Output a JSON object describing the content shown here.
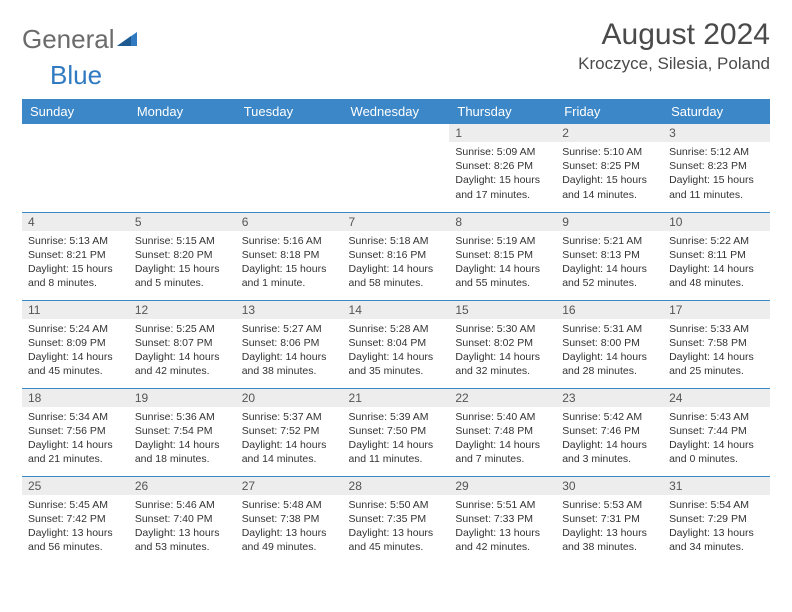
{
  "logo": {
    "text1": "General",
    "text2": "Blue"
  },
  "title": "August 2024",
  "location": "Kroczyce, Silesia, Poland",
  "colors": {
    "header_bg": "#3c87c7",
    "header_text": "#ffffff",
    "daynum_bg": "#ededed",
    "text": "#333333",
    "border": "#3c87c7",
    "title_color": "#4a4a4a",
    "logo_gray": "#6b6b6b",
    "logo_blue": "#2f7ac0"
  },
  "weekdays": [
    "Sunday",
    "Monday",
    "Tuesday",
    "Wednesday",
    "Thursday",
    "Friday",
    "Saturday"
  ],
  "weeks": [
    [
      {
        "n": "",
        "sr": "",
        "ss": "",
        "dl": ""
      },
      {
        "n": "",
        "sr": "",
        "ss": "",
        "dl": ""
      },
      {
        "n": "",
        "sr": "",
        "ss": "",
        "dl": ""
      },
      {
        "n": "",
        "sr": "",
        "ss": "",
        "dl": ""
      },
      {
        "n": "1",
        "sr": "Sunrise: 5:09 AM",
        "ss": "Sunset: 8:26 PM",
        "dl": "Daylight: 15 hours and 17 minutes."
      },
      {
        "n": "2",
        "sr": "Sunrise: 5:10 AM",
        "ss": "Sunset: 8:25 PM",
        "dl": "Daylight: 15 hours and 14 minutes."
      },
      {
        "n": "3",
        "sr": "Sunrise: 5:12 AM",
        "ss": "Sunset: 8:23 PM",
        "dl": "Daylight: 15 hours and 11 minutes."
      }
    ],
    [
      {
        "n": "4",
        "sr": "Sunrise: 5:13 AM",
        "ss": "Sunset: 8:21 PM",
        "dl": "Daylight: 15 hours and 8 minutes."
      },
      {
        "n": "5",
        "sr": "Sunrise: 5:15 AM",
        "ss": "Sunset: 8:20 PM",
        "dl": "Daylight: 15 hours and 5 minutes."
      },
      {
        "n": "6",
        "sr": "Sunrise: 5:16 AM",
        "ss": "Sunset: 8:18 PM",
        "dl": "Daylight: 15 hours and 1 minute."
      },
      {
        "n": "7",
        "sr": "Sunrise: 5:18 AM",
        "ss": "Sunset: 8:16 PM",
        "dl": "Daylight: 14 hours and 58 minutes."
      },
      {
        "n": "8",
        "sr": "Sunrise: 5:19 AM",
        "ss": "Sunset: 8:15 PM",
        "dl": "Daylight: 14 hours and 55 minutes."
      },
      {
        "n": "9",
        "sr": "Sunrise: 5:21 AM",
        "ss": "Sunset: 8:13 PM",
        "dl": "Daylight: 14 hours and 52 minutes."
      },
      {
        "n": "10",
        "sr": "Sunrise: 5:22 AM",
        "ss": "Sunset: 8:11 PM",
        "dl": "Daylight: 14 hours and 48 minutes."
      }
    ],
    [
      {
        "n": "11",
        "sr": "Sunrise: 5:24 AM",
        "ss": "Sunset: 8:09 PM",
        "dl": "Daylight: 14 hours and 45 minutes."
      },
      {
        "n": "12",
        "sr": "Sunrise: 5:25 AM",
        "ss": "Sunset: 8:07 PM",
        "dl": "Daylight: 14 hours and 42 minutes."
      },
      {
        "n": "13",
        "sr": "Sunrise: 5:27 AM",
        "ss": "Sunset: 8:06 PM",
        "dl": "Daylight: 14 hours and 38 minutes."
      },
      {
        "n": "14",
        "sr": "Sunrise: 5:28 AM",
        "ss": "Sunset: 8:04 PM",
        "dl": "Daylight: 14 hours and 35 minutes."
      },
      {
        "n": "15",
        "sr": "Sunrise: 5:30 AM",
        "ss": "Sunset: 8:02 PM",
        "dl": "Daylight: 14 hours and 32 minutes."
      },
      {
        "n": "16",
        "sr": "Sunrise: 5:31 AM",
        "ss": "Sunset: 8:00 PM",
        "dl": "Daylight: 14 hours and 28 minutes."
      },
      {
        "n": "17",
        "sr": "Sunrise: 5:33 AM",
        "ss": "Sunset: 7:58 PM",
        "dl": "Daylight: 14 hours and 25 minutes."
      }
    ],
    [
      {
        "n": "18",
        "sr": "Sunrise: 5:34 AM",
        "ss": "Sunset: 7:56 PM",
        "dl": "Daylight: 14 hours and 21 minutes."
      },
      {
        "n": "19",
        "sr": "Sunrise: 5:36 AM",
        "ss": "Sunset: 7:54 PM",
        "dl": "Daylight: 14 hours and 18 minutes."
      },
      {
        "n": "20",
        "sr": "Sunrise: 5:37 AM",
        "ss": "Sunset: 7:52 PM",
        "dl": "Daylight: 14 hours and 14 minutes."
      },
      {
        "n": "21",
        "sr": "Sunrise: 5:39 AM",
        "ss": "Sunset: 7:50 PM",
        "dl": "Daylight: 14 hours and 11 minutes."
      },
      {
        "n": "22",
        "sr": "Sunrise: 5:40 AM",
        "ss": "Sunset: 7:48 PM",
        "dl": "Daylight: 14 hours and 7 minutes."
      },
      {
        "n": "23",
        "sr": "Sunrise: 5:42 AM",
        "ss": "Sunset: 7:46 PM",
        "dl": "Daylight: 14 hours and 3 minutes."
      },
      {
        "n": "24",
        "sr": "Sunrise: 5:43 AM",
        "ss": "Sunset: 7:44 PM",
        "dl": "Daylight: 14 hours and 0 minutes."
      }
    ],
    [
      {
        "n": "25",
        "sr": "Sunrise: 5:45 AM",
        "ss": "Sunset: 7:42 PM",
        "dl": "Daylight: 13 hours and 56 minutes."
      },
      {
        "n": "26",
        "sr": "Sunrise: 5:46 AM",
        "ss": "Sunset: 7:40 PM",
        "dl": "Daylight: 13 hours and 53 minutes."
      },
      {
        "n": "27",
        "sr": "Sunrise: 5:48 AM",
        "ss": "Sunset: 7:38 PM",
        "dl": "Daylight: 13 hours and 49 minutes."
      },
      {
        "n": "28",
        "sr": "Sunrise: 5:50 AM",
        "ss": "Sunset: 7:35 PM",
        "dl": "Daylight: 13 hours and 45 minutes."
      },
      {
        "n": "29",
        "sr": "Sunrise: 5:51 AM",
        "ss": "Sunset: 7:33 PM",
        "dl": "Daylight: 13 hours and 42 minutes."
      },
      {
        "n": "30",
        "sr": "Sunrise: 5:53 AM",
        "ss": "Sunset: 7:31 PM",
        "dl": "Daylight: 13 hours and 38 minutes."
      },
      {
        "n": "31",
        "sr": "Sunrise: 5:54 AM",
        "ss": "Sunset: 7:29 PM",
        "dl": "Daylight: 13 hours and 34 minutes."
      }
    ]
  ]
}
